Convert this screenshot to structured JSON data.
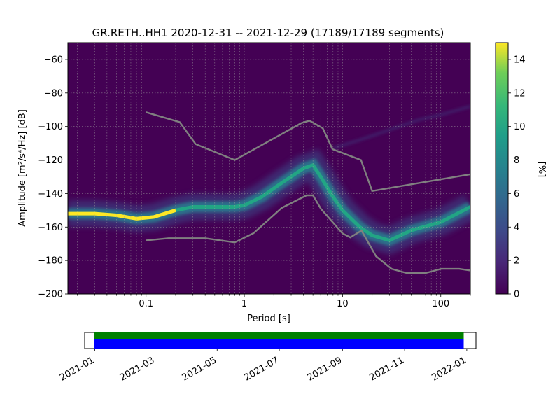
{
  "chart_data": {
    "type": "heatmap",
    "title": "GR.RETH..HH1   2020-12-31 -- 2021-12-29  (17189/17189 segments)",
    "xlabel": "Period [s]",
    "ylabel": "Amplitude [m²/s⁴/Hz] [dB]",
    "x_scale": "log",
    "xlim": [
      0.016,
      200
    ],
    "ylim": [
      -200,
      -50
    ],
    "x_ticks": [
      {
        "value": 0.1,
        "label": "0.1"
      },
      {
        "value": 1,
        "label": "1"
      },
      {
        "value": 10,
        "label": "10"
      },
      {
        "value": 100,
        "label": "100"
      }
    ],
    "y_ticks": [
      {
        "value": -60,
        "label": "−60"
      },
      {
        "value": -80,
        "label": "−80"
      },
      {
        "value": -100,
        "label": "−100"
      },
      {
        "value": -120,
        "label": "−120"
      },
      {
        "value": -140,
        "label": "−140"
      },
      {
        "value": -160,
        "label": "−160"
      },
      {
        "value": -180,
        "label": "−180"
      },
      {
        "value": -200,
        "label": "−200"
      }
    ],
    "grid": true,
    "colormap": "viridis",
    "colorbar": {
      "label": "[%]",
      "range": [
        0,
        15
      ],
      "ticks": [
        {
          "value": 0,
          "label": "0"
        },
        {
          "value": 2,
          "label": "2"
        },
        {
          "value": 4,
          "label": "4"
        },
        {
          "value": 6,
          "label": "6"
        },
        {
          "value": 8,
          "label": "8"
        },
        {
          "value": 10,
          "label": "10"
        },
        {
          "value": 12,
          "label": "12"
        },
        {
          "value": 14,
          "label": "14"
        }
      ]
    },
    "mode_curve": {
      "x": [
        0.016,
        0.03,
        0.05,
        0.08,
        0.12,
        0.2,
        0.3,
        0.5,
        0.8,
        1.0,
        1.5,
        2.5,
        4,
        5,
        6,
        8,
        10,
        15,
        20,
        30,
        50,
        100,
        200
      ],
      "y": [
        -152,
        -152,
        -153,
        -155,
        -154,
        -150,
        -148,
        -148,
        -148,
        -147,
        -142,
        -133,
        -125,
        -123,
        -130,
        -142,
        -150,
        -160,
        -165,
        -168,
        -162,
        -157,
        -148
      ]
    },
    "secondary_band": {
      "x": [
        8,
        15,
        30,
        60,
        100,
        200
      ],
      "y": [
        -113,
        -108,
        -102,
        -96,
        -93,
        -88
      ]
    },
    "nhnm": {
      "x": [
        0.1,
        0.22,
        0.32,
        0.8,
        3.8,
        4.6,
        6.3,
        7.9,
        15.4,
        20,
        354.8
      ],
      "y": [
        -91.5,
        -97.4,
        -110.5,
        -120,
        -98,
        -96.5,
        -101,
        -113.5,
        -120,
        -138.5,
        -126
      ]
    },
    "nlnm": {
      "x": [
        0.1,
        0.17,
        0.4,
        0.8,
        1.24,
        2.4,
        4.3,
        5,
        6,
        10,
        12,
        15.6,
        21.9,
        31.6,
        45,
        70,
        101,
        154,
        200
      ],
      "y": [
        -168,
        -166.7,
        -166.7,
        -169.2,
        -163.7,
        -148.6,
        -141.1,
        -141.1,
        -149,
        -163.8,
        -166.2,
        -162.1,
        -177.5,
        -185,
        -187.5,
        -187.5,
        -185,
        -185,
        -186
      ]
    },
    "coverage": {
      "x_ticks": [
        "2021-01",
        "2021-03",
        "2021-05",
        "2021-07",
        "2021-09",
        "2021-11",
        "2022-01"
      ],
      "start": "2020-12-31",
      "end": "2021-12-29",
      "xlim": [
        "2020-12-22",
        "2022-01-10"
      ],
      "colors": {
        "data": "#0000ff",
        "psd": "#008000"
      }
    }
  }
}
